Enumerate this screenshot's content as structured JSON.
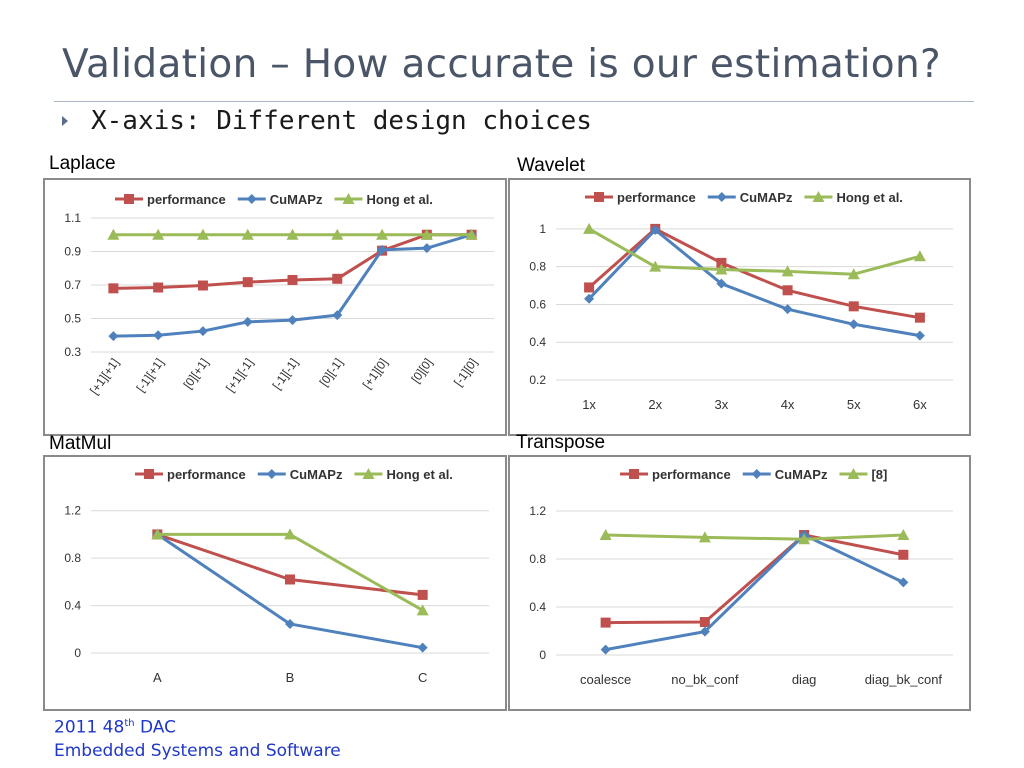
{
  "slide": {
    "title": "Validation – How accurate is our estimation?",
    "bullet": "X-axis: Different design choices",
    "footer_line1_prefix": "2011 48",
    "footer_line1_sup": "th",
    "footer_line1_suffix": " DAC",
    "footer_line2": "Embedded Systems and Software"
  },
  "colors": {
    "performance": "#c0504d",
    "cumapz": "#4f81bd",
    "third": "#9bbb59",
    "grid": "#d9d9d9",
    "axis_text": "#333333"
  },
  "icons": {
    "bullet": "triangle-right-icon"
  },
  "chart_data": [
    {
      "panel_label": "Laplace",
      "type": "line",
      "categories": [
        "[+1][+1]",
        "[-1][+1]",
        "[0][+1]",
        "[+1][-1]",
        "[-1][-1]",
        "[0][-1]",
        "[+1][0]",
        "[0][0]",
        "[-1][0]"
      ],
      "rotate_ticks": true,
      "ylim": [
        0.3,
        1.1
      ],
      "yticks": [
        0.3,
        0.5,
        0.7,
        0.9,
        1.1
      ],
      "ytick_labels": [
        "0.3",
        "0.5",
        "0.7",
        "0.9",
        "1.1"
      ],
      "grid": true,
      "legend": "top",
      "series": [
        {
          "name": "performance",
          "marker": "square",
          "values": [
            0.68,
            0.685,
            0.697,
            0.717,
            0.73,
            0.737,
            0.905,
            1.0,
            1.0
          ]
        },
        {
          "name": "CuMAPz",
          "marker": "diamond",
          "values": [
            0.395,
            0.4,
            0.425,
            0.48,
            0.49,
            0.52,
            0.91,
            0.92,
            1.0
          ]
        },
        {
          "name": "Hong et al.",
          "marker": "triangle",
          "values": [
            1.0,
            1.0,
            1.0,
            1.0,
            1.0,
            1.0,
            1.0,
            1.0,
            1.0
          ]
        }
      ]
    },
    {
      "panel_label": "Wavelet",
      "type": "line",
      "categories": [
        "1x",
        "2x",
        "3x",
        "4x",
        "5x",
        "6x"
      ],
      "rotate_ticks": false,
      "ylim": [
        0.2,
        1.1
      ],
      "yticks": [
        0.2,
        0.4,
        0.6,
        0.8,
        1.0
      ],
      "ytick_labels": [
        "0.2",
        "0.4",
        "0.6",
        "0.8",
        "1"
      ],
      "grid": true,
      "legend": "top",
      "series": [
        {
          "name": "performance",
          "marker": "square",
          "values": [
            0.69,
            1.0,
            0.82,
            0.675,
            0.59,
            0.53
          ]
        },
        {
          "name": "CuMAPz",
          "marker": "diamond",
          "values": [
            0.63,
            0.995,
            0.71,
            0.575,
            0.495,
            0.435
          ]
        },
        {
          "name": "Hong et al.",
          "marker": "triangle",
          "values": [
            1.0,
            0.8,
            0.785,
            0.775,
            0.76,
            0.855
          ]
        }
      ]
    },
    {
      "panel_label": "MatMul",
      "type": "line",
      "categories": [
        "A",
        "B",
        "C"
      ],
      "rotate_ticks": false,
      "ylim": [
        0,
        1.4
      ],
      "yticks": [
        0,
        0.4,
        0.8,
        1.2
      ],
      "ytick_labels": [
        "0",
        "0.4",
        "0.8",
        "1.2"
      ],
      "grid": true,
      "legend": "top",
      "series": [
        {
          "name": "performance",
          "marker": "square",
          "values": [
            1.0,
            0.62,
            0.49
          ]
        },
        {
          "name": "CuMAPz",
          "marker": "diamond",
          "values": [
            1.0,
            0.245,
            0.045
          ]
        },
        {
          "name": "Hong et al.",
          "marker": "triangle",
          "values": [
            1.0,
            1.0,
            0.36
          ]
        }
      ]
    },
    {
      "panel_label": "Transpose",
      "type": "line",
      "categories": [
        "coalesce",
        "no_bk_conf",
        "diag",
        "diag_bk_conf"
      ],
      "rotate_ticks": false,
      "ylim": [
        0,
        1.4
      ],
      "yticks": [
        0,
        0.4,
        0.8,
        1.2
      ],
      "ytick_labels": [
        "0",
        "0.4",
        "0.8",
        "1.2"
      ],
      "grid": true,
      "legend": "top",
      "series": [
        {
          "name": "performance",
          "marker": "square",
          "values": [
            0.27,
            0.275,
            1.0,
            0.835
          ]
        },
        {
          "name": "CuMAPz",
          "marker": "diamond",
          "values": [
            0.045,
            0.195,
            1.0,
            0.605
          ]
        },
        {
          "name": "[8]",
          "marker": "triangle",
          "values": [
            1.0,
            0.98,
            0.965,
            1.0
          ]
        }
      ]
    }
  ]
}
